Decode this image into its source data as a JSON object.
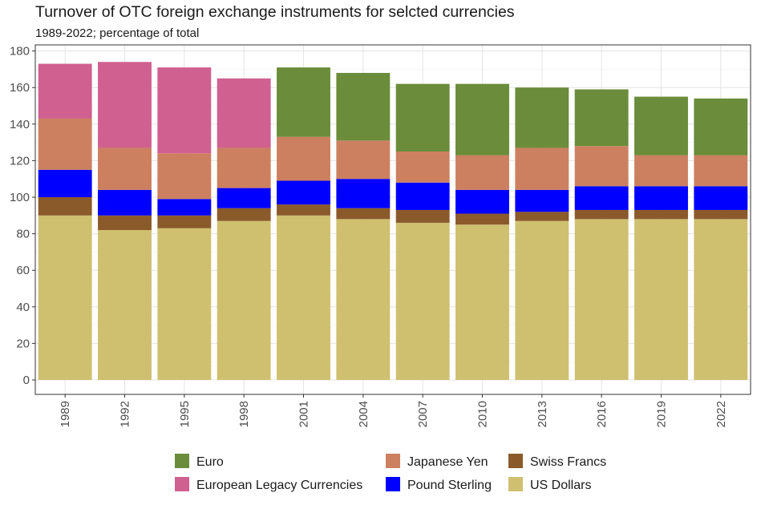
{
  "chart_data": {
    "type": "bar",
    "stacked": true,
    "title": "Turnover of OTC foreign exchange instruments for selcted currencies",
    "subtitle": "1989-2022; percentage of total",
    "xlabel": "",
    "ylabel": "",
    "categories": [
      "1989",
      "1992",
      "1995",
      "1998",
      "2001",
      "2004",
      "2007",
      "2010",
      "2013",
      "2016",
      "2019",
      "2022"
    ],
    "ylim": [
      0,
      180
    ],
    "yticks": [
      0,
      20,
      40,
      60,
      80,
      100,
      120,
      140,
      160,
      180
    ],
    "grid": true,
    "legend_position": "bottom",
    "series": [
      {
        "name": "US Dollars",
        "color": "#cfc070",
        "values": [
          90,
          82,
          83,
          87,
          90,
          88,
          86,
          85,
          87,
          88,
          88,
          88
        ]
      },
      {
        "name": "Swiss Francs",
        "color": "#8b5a2b",
        "values": [
          10,
          8,
          7,
          7,
          6,
          6,
          7,
          6,
          5,
          5,
          5,
          5
        ]
      },
      {
        "name": "Pound Sterling",
        "color": "#0000ff",
        "values": [
          15,
          14,
          9,
          11,
          13,
          16,
          15,
          13,
          12,
          13,
          13,
          13
        ]
      },
      {
        "name": "Japanese Yen",
        "color": "#cc8060",
        "values": [
          28,
          23,
          25,
          22,
          24,
          21,
          17,
          19,
          23,
          22,
          17,
          17
        ]
      },
      {
        "name": "European Legacy Currencies",
        "color": "#d06090",
        "values": [
          30,
          47,
          47,
          38,
          0,
          0,
          0,
          0,
          0,
          0,
          0,
          0
        ]
      },
      {
        "name": "Euro",
        "color": "#6b8c3a",
        "values": [
          0,
          0,
          0,
          0,
          38,
          37,
          37,
          39,
          33,
          31,
          32,
          31
        ]
      }
    ],
    "legend_order": [
      "Euro",
      "European Legacy Currencies",
      "Japanese Yen",
      "Pound Sterling",
      "Swiss Francs",
      "US Dollars"
    ]
  }
}
